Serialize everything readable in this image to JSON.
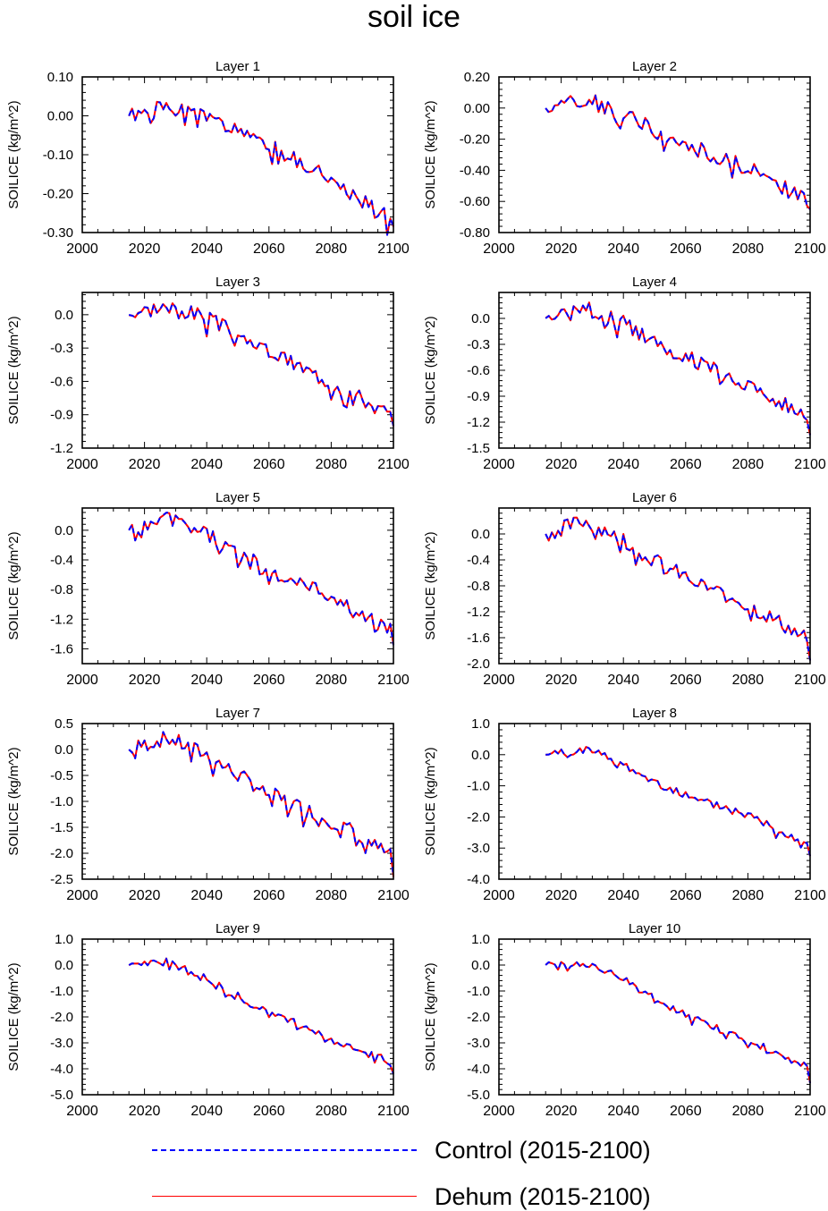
{
  "title": "soil ice",
  "legend": {
    "control": {
      "label": "Control (2015-2100)",
      "color": "#0000ff"
    },
    "dehum": {
      "label": "Dehum (2015-2100)",
      "color": "#ff0000"
    }
  },
  "chart_data": [
    {
      "type": "line",
      "title": "Layer 1",
      "xlabel": "",
      "ylabel": "SOILICE  (kg/m^2)",
      "xlim": [
        2000,
        2100
      ],
      "ylim": [
        -0.3,
        0.1
      ],
      "yticks": [
        "0.10",
        "0.00",
        "-0.10",
        "-0.20",
        "-0.30"
      ],
      "ytick_values": [
        0.1,
        0.0,
        -0.1,
        -0.2,
        -0.3
      ],
      "xticks": [
        "2000",
        "2020",
        "2040",
        "2060",
        "2080",
        "2100"
      ],
      "xtick_values": [
        2000,
        2020,
        2040,
        2060,
        2080,
        2100
      ],
      "x_start": 2015,
      "x_end": 2100,
      "final": -0.285,
      "anchors": [
        0.0,
        0.02,
        0.0,
        -0.05,
        -0.09,
        -0.14,
        -0.21,
        -0.27
      ],
      "wiggle": 0.02,
      "seed": 1
    },
    {
      "type": "line",
      "title": "Layer 2",
      "xlabel": "",
      "ylabel": "SOILICE  (kg/m^2)",
      "xlim": [
        2000,
        2100
      ],
      "ylim": [
        -0.8,
        0.2
      ],
      "yticks": [
        "0.20",
        "0.00",
        "-0.20",
        "-0.40",
        "-0.60",
        "-0.80"
      ],
      "ytick_values": [
        0.2,
        0.0,
        -0.2,
        -0.4,
        -0.6,
        -0.8
      ],
      "xticks": [
        "2000",
        "2020",
        "2040",
        "2060",
        "2080",
        "2100"
      ],
      "xtick_values": [
        2000,
        2020,
        2040,
        2060,
        2080,
        2100
      ],
      "x_start": 2015,
      "x_end": 2100,
      "final": -0.65,
      "anchors": [
        0.0,
        0.06,
        -0.02,
        -0.15,
        -0.26,
        -0.35,
        -0.47,
        -0.6
      ],
      "wiggle": 0.05,
      "seed": 2
    },
    {
      "type": "line",
      "title": "Layer 3",
      "xlabel": "",
      "ylabel": "SOILICE  (kg/m^2)",
      "xlim": [
        2000,
        2100
      ],
      "ylim": [
        -1.2,
        0.2
      ],
      "yticks": [
        "0.0",
        "-0.3",
        "-0.6",
        "-0.9",
        "-1.2"
      ],
      "ytick_values": [
        0.0,
        -0.3,
        -0.6,
        -0.9,
        -1.2
      ],
      "xticks": [
        "2000",
        "2020",
        "2040",
        "2060",
        "2080",
        "2100"
      ],
      "xtick_values": [
        2000,
        2020,
        2040,
        2060,
        2080,
        2100
      ],
      "x_start": 2015,
      "x_end": 2100,
      "final": -1.0,
      "anchors": [
        0.0,
        0.09,
        -0.02,
        -0.2,
        -0.38,
        -0.55,
        -0.72,
        -0.92
      ],
      "wiggle": 0.07,
      "seed": 3
    },
    {
      "type": "line",
      "title": "Layer 4",
      "xlabel": "",
      "ylabel": "SOILICE  (kg/m^2)",
      "xlim": [
        2000,
        2100
      ],
      "ylim": [
        -1.5,
        0.3
      ],
      "yticks": [
        "0.0",
        "-0.3",
        "-0.6",
        "-0.9",
        "-1.2",
        "-1.5"
      ],
      "ytick_values": [
        0.0,
        -0.3,
        -0.6,
        -0.9,
        -1.2,
        -1.5
      ],
      "xticks": [
        "2000",
        "2020",
        "2040",
        "2060",
        "2080",
        "2100"
      ],
      "xtick_values": [
        2000,
        2020,
        2040,
        2060,
        2080,
        2100
      ],
      "x_start": 2015,
      "x_end": 2100,
      "final": -1.35,
      "anchors": [
        0.0,
        0.13,
        -0.03,
        -0.3,
        -0.5,
        -0.7,
        -0.93,
        -1.15
      ],
      "wiggle": 0.09,
      "seed": 4
    },
    {
      "type": "line",
      "title": "Layer 5",
      "xlabel": "",
      "ylabel": "SOILICE  (kg/m^2)",
      "xlim": [
        2000,
        2100
      ],
      "ylim": [
        -1.8,
        0.3
      ],
      "yticks": [
        "0.0",
        "-0.4",
        "-0.8",
        "-1.2",
        "-1.6"
      ],
      "ytick_values": [
        0.0,
        -0.4,
        -0.8,
        -1.2,
        -1.6
      ],
      "xticks": [
        "2000",
        "2020",
        "2040",
        "2060",
        "2080",
        "2100"
      ],
      "xtick_values": [
        2000,
        2020,
        2040,
        2060,
        2080,
        2100
      ],
      "x_start": 2015,
      "x_end": 2100,
      "final": -1.55,
      "anchors": [
        0.0,
        0.16,
        -0.03,
        -0.35,
        -0.6,
        -0.8,
        -1.1,
        -1.35
      ],
      "wiggle": 0.1,
      "seed": 5
    },
    {
      "type": "line",
      "title": "Layer 6",
      "xlabel": "",
      "ylabel": "SOILICE  (kg/m^2)",
      "xlim": [
        2000,
        2100
      ],
      "ylim": [
        -2.0,
        0.4
      ],
      "yticks": [
        "0.0",
        "-0.4",
        "-0.8",
        "-1.2",
        "-1.6",
        "-2.0"
      ],
      "ytick_values": [
        0.0,
        -0.4,
        -0.8,
        -1.2,
        -1.6,
        -2.0
      ],
      "xticks": [
        "2000",
        "2020",
        "2040",
        "2060",
        "2080",
        "2100"
      ],
      "xtick_values": [
        2000,
        2020,
        2040,
        2060,
        2080,
        2100
      ],
      "x_start": 2015,
      "x_end": 2100,
      "final": -1.95,
      "anchors": [
        0.0,
        0.2,
        -0.04,
        -0.45,
        -0.75,
        -1.0,
        -1.3,
        -1.65
      ],
      "wiggle": 0.12,
      "seed": 6
    },
    {
      "type": "line",
      "title": "Layer 7",
      "xlabel": "",
      "ylabel": "SOILICE  (kg/m^2)",
      "xlim": [
        2000,
        2100
      ],
      "ylim": [
        -2.5,
        0.5
      ],
      "yticks": [
        "0.5",
        "0.0",
        "-0.5",
        "-1.0",
        "-1.5",
        "-2.0",
        "-2.5"
      ],
      "ytick_values": [
        0.5,
        0.0,
        -0.5,
        -1.0,
        -1.5,
        -2.0,
        -2.5
      ],
      "xticks": [
        "2000",
        "2020",
        "2040",
        "2060",
        "2080",
        "2100"
      ],
      "xtick_values": [
        2000,
        2020,
        2040,
        2060,
        2080,
        2100
      ],
      "x_start": 2015,
      "x_end": 2100,
      "final": -2.45,
      "anchors": [
        0.0,
        0.22,
        -0.08,
        -0.55,
        -0.95,
        -1.25,
        -1.6,
        -2.1
      ],
      "wiggle": 0.15,
      "seed": 7
    },
    {
      "type": "line",
      "title": "Layer 8",
      "xlabel": "",
      "ylabel": "SOILICE  (kg/m^2)",
      "xlim": [
        2000,
        2100
      ],
      "ylim": [
        -4.0,
        1.0
      ],
      "yticks": [
        "1.0",
        "0.0",
        "-1.0",
        "-2.0",
        "-3.0",
        "-4.0"
      ],
      "ytick_values": [
        1.0,
        0.0,
        -1.0,
        -2.0,
        -3.0,
        -4.0
      ],
      "xticks": [
        "2000",
        "2020",
        "2040",
        "2060",
        "2080",
        "2100"
      ],
      "xtick_values": [
        2000,
        2020,
        2040,
        2060,
        2080,
        2100
      ],
      "x_start": 2015,
      "x_end": 2100,
      "final": -3.25,
      "anchors": [
        0.0,
        0.2,
        -0.3,
        -0.9,
        -1.5,
        -1.75,
        -2.3,
        -2.9
      ],
      "wiggle": 0.15,
      "seed": 8
    },
    {
      "type": "line",
      "title": "Layer 9",
      "xlabel": "",
      "ylabel": "SOILICE  (kg/m^2)",
      "xlim": [
        2000,
        2100
      ],
      "ylim": [
        -5.0,
        1.0
      ],
      "yticks": [
        "1.0",
        "0.0",
        "-1.0",
        "-2.0",
        "-3.0",
        "-4.0",
        "-5.0"
      ],
      "ytick_values": [
        1.0,
        0.0,
        -1.0,
        -2.0,
        -3.0,
        -4.0,
        -5.0
      ],
      "xticks": [
        "2000",
        "2020",
        "2040",
        "2060",
        "2080",
        "2100"
      ],
      "xtick_values": [
        2000,
        2020,
        2040,
        2060,
        2080,
        2100
      ],
      "x_start": 2015,
      "x_end": 2100,
      "final": -4.2,
      "anchors": [
        0.0,
        0.1,
        -0.5,
        -1.3,
        -2.0,
        -2.6,
        -3.2,
        -3.8
      ],
      "wiggle": 0.15,
      "seed": 9
    },
    {
      "type": "line",
      "title": "Layer 10",
      "xlabel": "",
      "ylabel": "SOILICE  (kg/m^2)",
      "xlim": [
        2000,
        2100
      ],
      "ylim": [
        -5.0,
        1.0
      ],
      "yticks": [
        "1.0",
        "0.0",
        "-1.0",
        "-2.0",
        "-3.0",
        "-4.0",
        "-5.0"
      ],
      "ytick_values": [
        1.0,
        0.0,
        -1.0,
        -2.0,
        -3.0,
        -4.0,
        -5.0
      ],
      "xticks": [
        "2000",
        "2020",
        "2040",
        "2060",
        "2080",
        "2100"
      ],
      "xtick_values": [
        2000,
        2020,
        2040,
        2060,
        2080,
        2100
      ],
      "x_start": 2015,
      "x_end": 2100,
      "final": -4.55,
      "anchors": [
        0.0,
        0.1,
        -0.5,
        -1.35,
        -2.1,
        -2.7,
        -3.3,
        -4.0
      ],
      "wiggle": 0.13,
      "seed": 10
    }
  ]
}
